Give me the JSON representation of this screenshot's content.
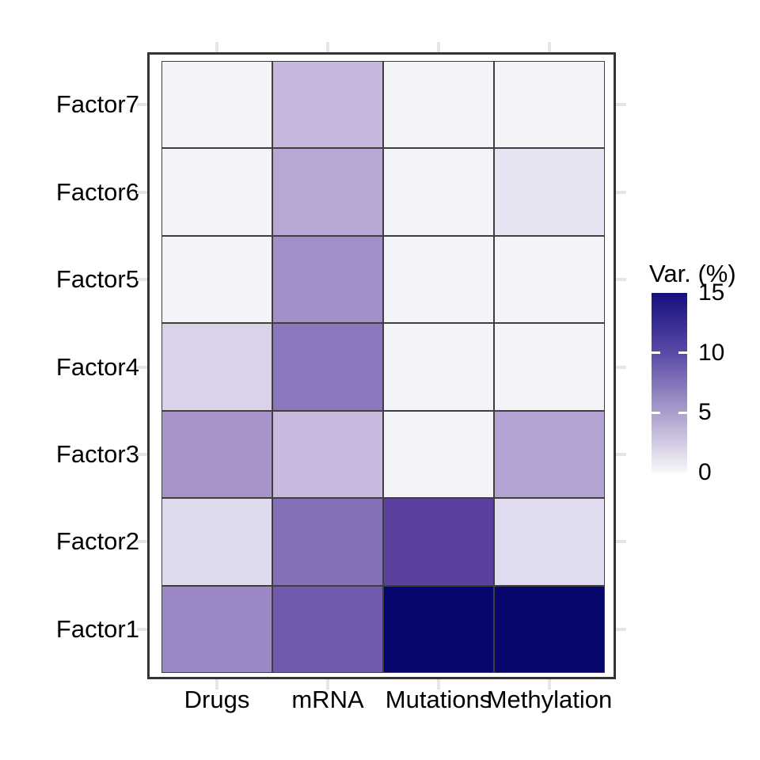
{
  "chart_data": {
    "type": "heatmap",
    "title": "",
    "legend_title": "Var. (%)",
    "columns": [
      "Drugs",
      "mRNA",
      "Mutations",
      "Methylation"
    ],
    "rows_top_to_bottom": [
      "Factor7",
      "Factor6",
      "Factor5",
      "Factor4",
      "Factor3",
      "Factor2",
      "Factor1"
    ],
    "values_percent": [
      [
        0.2,
        3.0,
        0.1,
        0.2
      ],
      [
        0.2,
        4.0,
        0.1,
        1.0
      ],
      [
        0.2,
        5.3,
        0.1,
        0.2
      ],
      [
        1.9,
        6.6,
        0.1,
        0.2
      ],
      [
        4.8,
        3.0,
        0.1,
        4.1
      ],
      [
        1.5,
        6.8,
        9.6,
        1.4
      ],
      [
        5.5,
        8.2,
        15.0,
        15.0
      ]
    ],
    "cell_colors": [
      [
        "#f4f3f7",
        "#c6b8dc",
        "#f4f3f7",
        "#f4f3f7"
      ],
      [
        "#f4f3f7",
        "#b6a7d5",
        "#f4f3f7",
        "#e7e3f2"
      ],
      [
        "#f4f3f7",
        "#a18fc7",
        "#f4f3f7",
        "#f4f3f7"
      ],
      [
        "#d9d2e9",
        "#8b77bb",
        "#f4f3f7",
        "#f4f3f7"
      ],
      [
        "#a793ca",
        "#c7bade",
        "#f4f3f7",
        "#b3a3d3"
      ],
      [
        "#e0daee",
        "#8571b8",
        "#5b40a0",
        "#e1dcef"
      ],
      [
        "#9b87c4",
        "#7159ad",
        "#07056e",
        "#07056e"
      ]
    ],
    "scale": {
      "min": 0,
      "max": 15,
      "legend_breaks": [
        15,
        10,
        5,
        0
      ],
      "legend_tick_marks": [
        10,
        5
      ],
      "gradient": {
        "15": "#16107f",
        "10": "#5a49a6",
        "5": "#ab9ecd",
        "0": "#f8f7fa"
      }
    },
    "legend_position": "right",
    "grid": "off"
  },
  "legend": {
    "title": "Var. (%)",
    "tick_labels": [
      "15",
      "10",
      "5",
      "0"
    ]
  },
  "colors": {
    "background": "#ffffff",
    "panel_border": "#343434",
    "cell_border": "#3f3f3f",
    "axis_tick": "#e6e6e6",
    "text": "#000000"
  }
}
